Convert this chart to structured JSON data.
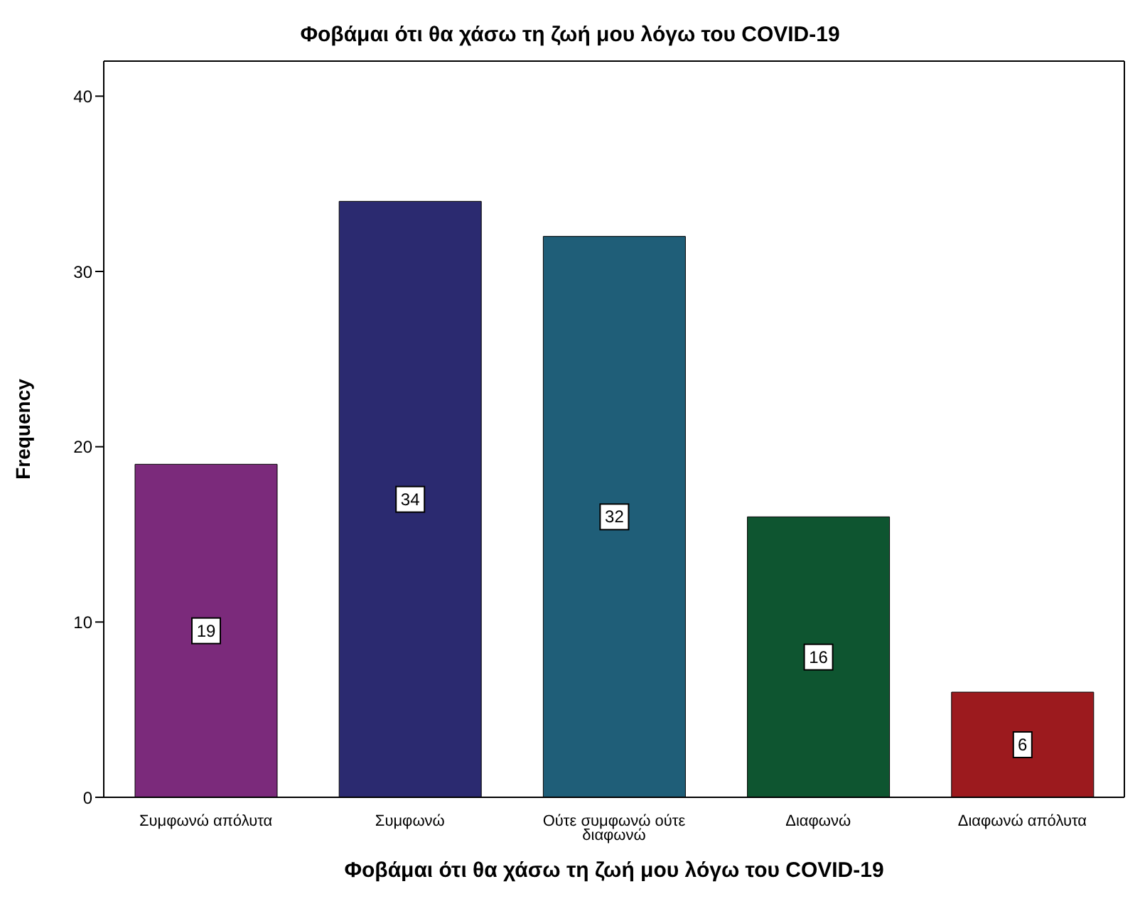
{
  "chart_data": {
    "type": "bar",
    "title": "Φοβάμαι ότι θα χάσω τη ζωή μου λόγω του COVID-19",
    "xlabel": "Φοβάμαι ότι θα χάσω τη ζωή μου λόγω του COVID-19",
    "ylabel": "Frequency",
    "categories": [
      "Συμφωνώ απόλυτα",
      "Συμφωνώ",
      "Ούτε συμφωνώ ούτε διαφωνώ",
      "Διαφωνώ",
      "Διαφωνώ απόλυτα"
    ],
    "values": [
      19,
      34,
      32,
      16,
      6
    ],
    "colors": [
      "#7b2a7b",
      "#2b2a70",
      "#1f5e78",
      "#0e5530",
      "#9c1a1e"
    ],
    "ylim": [
      0,
      42
    ],
    "yticks": [
      0,
      10,
      20,
      30,
      40
    ],
    "grid": false,
    "data_labels": true
  }
}
